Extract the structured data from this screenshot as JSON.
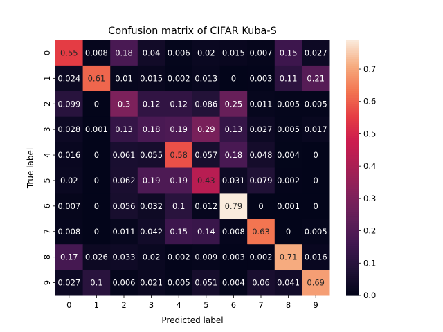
{
  "chart_data": {
    "type": "heatmap",
    "title": "Confusion matrix of CIFAR Kuba-S",
    "xlabel": "Predicted label",
    "ylabel": "True label",
    "x_categories": [
      "0",
      "1",
      "2",
      "3",
      "4",
      "5",
      "6",
      "7",
      "8",
      "9"
    ],
    "y_categories": [
      "0",
      "1",
      "2",
      "3",
      "4",
      "5",
      "6",
      "7",
      "8",
      "9"
    ],
    "values": [
      [
        0.55,
        0.008,
        0.18,
        0.04,
        0.006,
        0.02,
        0.015,
        0.007,
        0.15,
        0.027
      ],
      [
        0.024,
        0.61,
        0.01,
        0.015,
        0.002,
        0.013,
        0,
        0.003,
        0.11,
        0.21
      ],
      [
        0.099,
        0,
        0.3,
        0.12,
        0.12,
        0.086,
        0.25,
        0.011,
        0.005,
        0.005
      ],
      [
        0.028,
        0.001,
        0.13,
        0.18,
        0.19,
        0.29,
        0.13,
        0.027,
        0.005,
        0.017
      ],
      [
        0.016,
        0,
        0.061,
        0.055,
        0.58,
        0.057,
        0.18,
        0.048,
        0.004,
        0
      ],
      [
        0.02,
        0,
        0.062,
        0.19,
        0.19,
        0.43,
        0.031,
        0.079,
        0.002,
        0
      ],
      [
        0.007,
        0,
        0.056,
        0.032,
        0.1,
        0.012,
        0.79,
        0,
        0.001,
        0
      ],
      [
        0.008,
        0,
        0.011,
        0.042,
        0.15,
        0.14,
        0.008,
        0.63,
        0,
        0.005
      ],
      [
        0.17,
        0.026,
        0.033,
        0.02,
        0.002,
        0.009,
        0.003,
        0.002,
        0.71,
        0.016
      ],
      [
        0.027,
        0.1,
        0.006,
        0.021,
        0.005,
        0.051,
        0.004,
        0.06,
        0.041,
        0.69
      ]
    ],
    "colorbar": {
      "range": [
        0,
        0.79
      ],
      "ticks": [
        "0.0",
        "0.1",
        "0.2",
        "0.3",
        "0.4",
        "0.5",
        "0.6",
        "0.7"
      ],
      "colormap": "rocket"
    }
  }
}
